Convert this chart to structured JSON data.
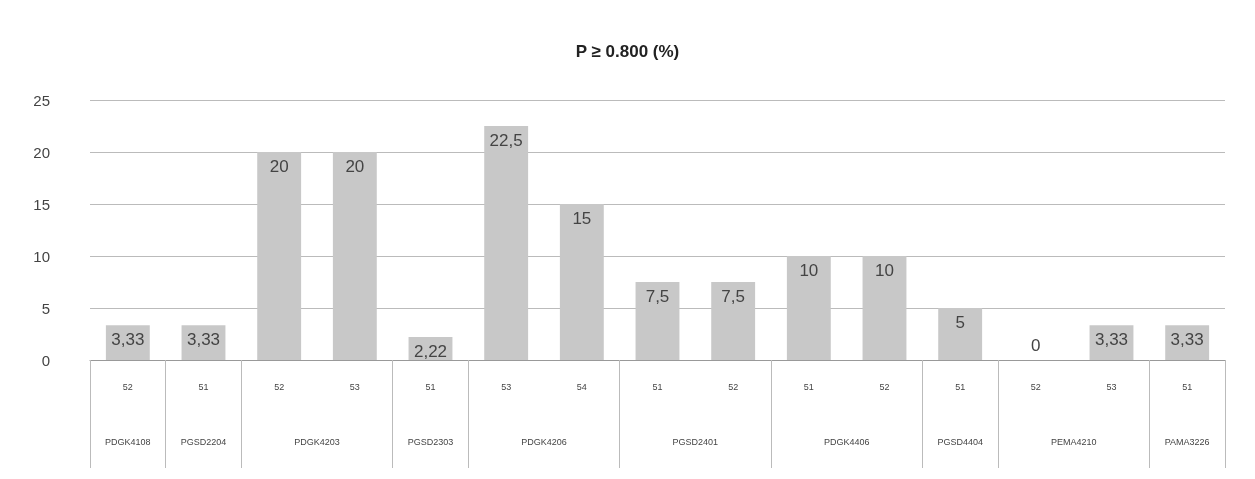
{
  "chart_data": {
    "type": "bar",
    "title": "P ≥ 0.800 (%)",
    "categories": [
      "52\nPDGK4108",
      "51\nPGSD2204",
      "52",
      "53\nPDGK4203",
      "51\nPGSD2303",
      "53",
      "54\nPDGK4206",
      "51",
      "52\nPGSD2401",
      "51",
      "52\nPDGK4406",
      "51\nPGSD4404",
      "52",
      "53\nPEMA4210",
      "51\nPAMA3226"
    ],
    "values": [
      3.33,
      3.33,
      20,
      20,
      2.22,
      22.5,
      15,
      7.5,
      7.5,
      10,
      10,
      5,
      0,
      3.33,
      3.33
    ],
    "value_labels": [
      "3,33",
      "3,33",
      "20",
      "20",
      "2,22",
      "22,5",
      "15",
      "7,5",
      "7,5",
      "10",
      "10",
      "5",
      "0",
      "3,33",
      "3,33"
    ],
    "color": "#c8c8c8",
    "ylim": [
      0,
      25
    ],
    "yticks": [
      0,
      5,
      10,
      15,
      20,
      25
    ],
    "grid": "y"
  }
}
